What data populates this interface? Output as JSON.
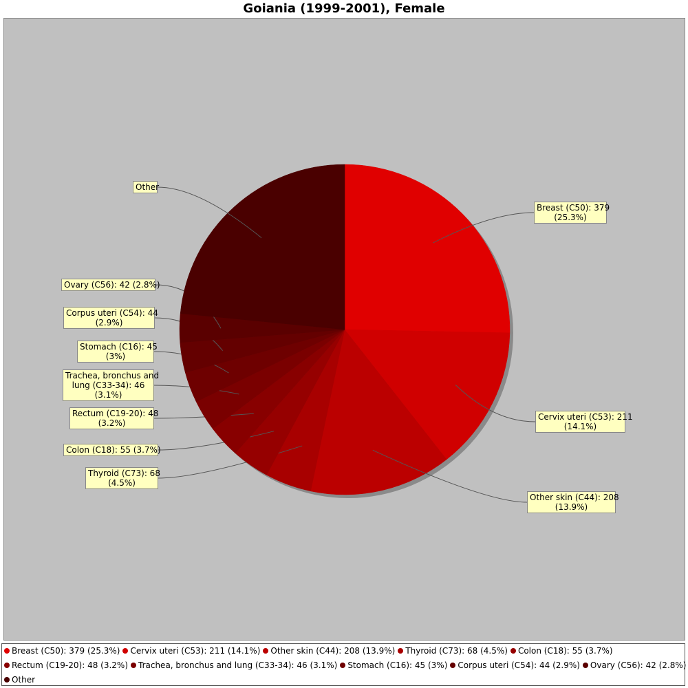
{
  "chart_data": {
    "type": "pie",
    "title": "Goiania (1999-2001), Female",
    "slices": [
      {
        "name": "Breast (C50)",
        "value": 379,
        "percent": "25.3%",
        "label": "Breast (C50): 379\n(25.3%)",
        "legend": "Breast (C50): 379 (25.3%)",
        "color": "#e00000"
      },
      {
        "name": "Cervix uteri (C53)",
        "value": 211,
        "percent": "14.1%",
        "label": "Cervix uteri (C53): 211\n(14.1%)",
        "legend": "Cervix uteri (C53): 211 (14.1%)",
        "color": "#d00000"
      },
      {
        "name": "Other skin (C44)",
        "value": 208,
        "percent": "13.9%",
        "label": "Other skin (C44): 208\n(13.9%)",
        "legend": "Other skin (C44): 208 (13.9%)",
        "color": "#bb0000"
      },
      {
        "name": "Thyroid (C73)",
        "value": 68,
        "percent": "4.5%",
        "label": "Thyroid (C73): 68\n(4.5%)",
        "legend": "Thyroid (C73): 68 (4.5%)",
        "color": "#a80000"
      },
      {
        "name": "Colon (C18)",
        "value": 55,
        "percent": "3.7%",
        "label": "Colon (C18): 55 (3.7%)",
        "legend": "Colon (C18): 55 (3.7%)",
        "color": "#960000"
      },
      {
        "name": "Rectum (C19-20)",
        "value": 48,
        "percent": "3.2%",
        "label": "Rectum (C19-20): 48\n(3.2%)",
        "legend": "Rectum (C19-20): 48 (3.2%)",
        "color": "#880000"
      },
      {
        "name": "Trachea, bronchus and lung (C33-34)",
        "value": 46,
        "percent": "3.1%",
        "label": "Trachea, bronchus and\nlung (C33-34): 46\n(3.1%)",
        "legend": "Trachea, bronchus and lung (C33-34): 46 (3.1%)",
        "color": "#7a0000"
      },
      {
        "name": "Stomach (C16)",
        "value": 45,
        "percent": "3%",
        "label": "Stomach (C16): 45\n(3%)",
        "legend": "Stomach (C16): 45 (3%)",
        "color": "#6e0000"
      },
      {
        "name": "Corpus uteri (C54)",
        "value": 44,
        "percent": "2.9%",
        "label": "Corpus uteri (C54): 44\n(2.9%)",
        "legend": "Corpus uteri (C54): 44 (2.9%)",
        "color": "#640000"
      },
      {
        "name": "Ovary (C56)",
        "value": 42,
        "percent": "2.8%",
        "label": "Ovary (C56): 42 (2.8%)",
        "legend": "Ovary (C56): 42 (2.8%)",
        "color": "#5a0000"
      },
      {
        "name": "Other",
        "value": 351,
        "percent": "",
        "label": "Other",
        "legend": "Other",
        "color": "#4a0000"
      }
    ],
    "start_angle_deg": 90,
    "direction": "clockwise",
    "legend_position": "bottom",
    "background_color": "#c0c0c0",
    "label_box_color": "#ffffc0"
  }
}
